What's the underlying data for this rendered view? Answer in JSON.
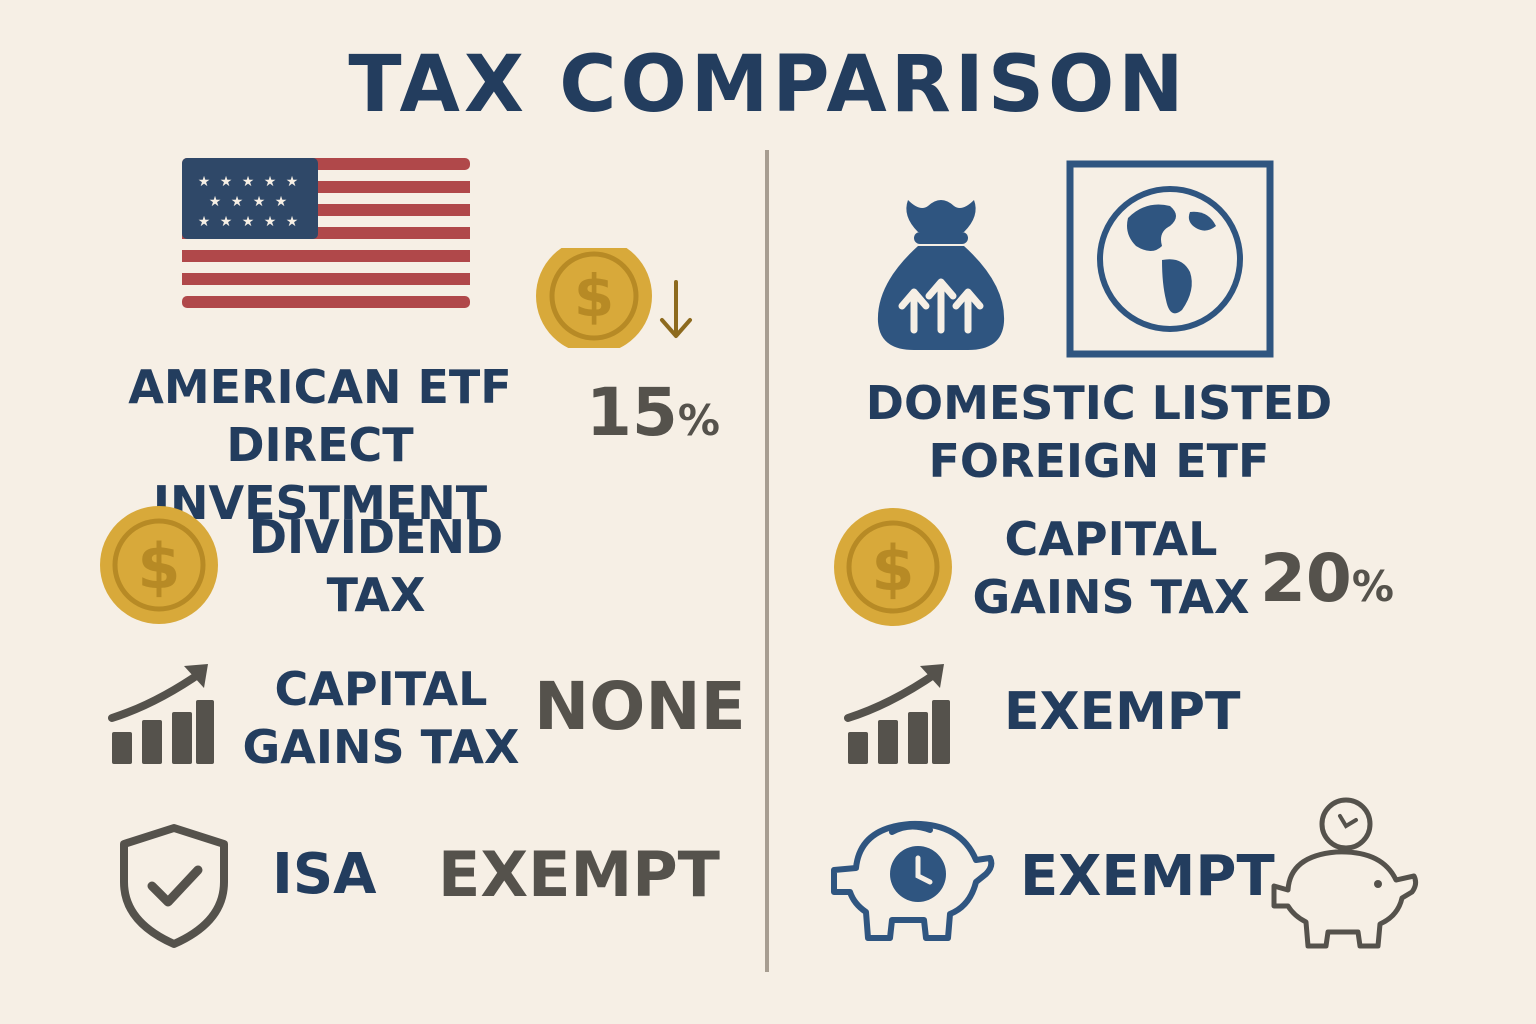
{
  "title": "TAX COMPARISON",
  "left": {
    "heading_line1": "AMERICAN ETF",
    "heading_line2": "DIRECT INVESTMENT",
    "rate_value": "15",
    "rate_unit": "%",
    "dividend_line1": "DIVIDEND",
    "dividend_line2": "TAX",
    "cgt_line1": "CAPITAL",
    "cgt_line2": "GAINS TAX",
    "cgt_value": "NONE",
    "isa_label": "ISA",
    "isa_value": "EXEMPT"
  },
  "right": {
    "heading_line1": "DOMESTIC LISTED",
    "heading_line2": "FOREIGN ETF",
    "cgt_line1": "CAPITAL",
    "cgt_line2": "GAINS TAX",
    "rate_value": "20",
    "rate_unit": "%",
    "growth_value": "EXEMPT",
    "savings_value": "EXEMPT"
  },
  "colors": {
    "background": "#f6efe5",
    "navy": "#233d5e",
    "gray": "#55524c",
    "gold": "#d8a93a",
    "flag_red": "#b0484a",
    "divider": "#a79d91"
  },
  "icons": [
    "us-flag-icon",
    "coin-down-arrow-icon",
    "coin-icon",
    "growth-chart-icon",
    "shield-check-icon",
    "money-bag-icon",
    "globe-icon",
    "piggy-bank-clock-icon",
    "piggy-bank-coin-icon"
  ]
}
